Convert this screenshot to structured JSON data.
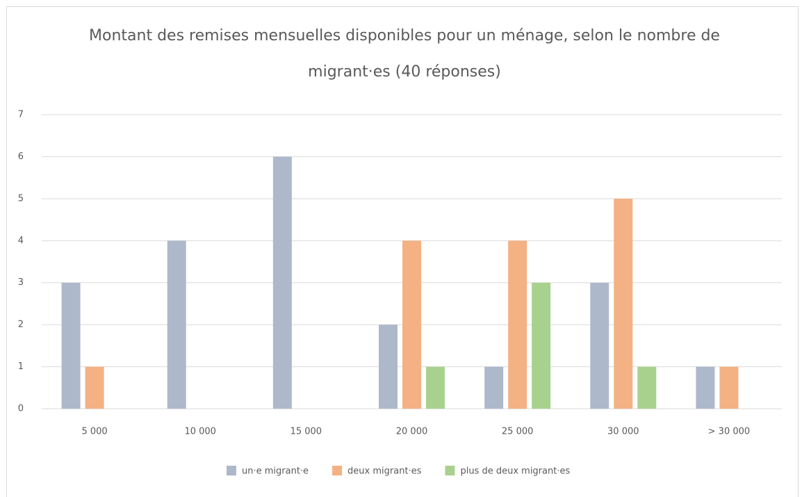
{
  "chart_data": {
    "type": "bar",
    "title": "Montant des remises mensuelles disponibles pour un ménage, selon le nombre de migrant·es (40 réponses)",
    "categories": [
      "5 000",
      "10 000",
      "15 000",
      "20 000",
      "25 000",
      "30 000",
      "> 30 000"
    ],
    "series": [
      {
        "name": "un·e migrant·e",
        "color": "#adb9ca",
        "values": [
          3,
          4,
          6,
          2,
          1,
          3,
          1
        ]
      },
      {
        "name": "deux migrant·es",
        "color": "#f4b183",
        "values": [
          1,
          0,
          0,
          4,
          4,
          5,
          1
        ]
      },
      {
        "name": "plus de deux migrant·es",
        "color": "#a9d18e",
        "values": [
          0,
          0,
          0,
          1,
          3,
          1,
          0
        ]
      }
    ],
    "ylim": [
      0,
      7
    ],
    "yticks": [
      0,
      1,
      2,
      3,
      4,
      5,
      6,
      7
    ],
    "grid": true,
    "legend": "bottom"
  }
}
